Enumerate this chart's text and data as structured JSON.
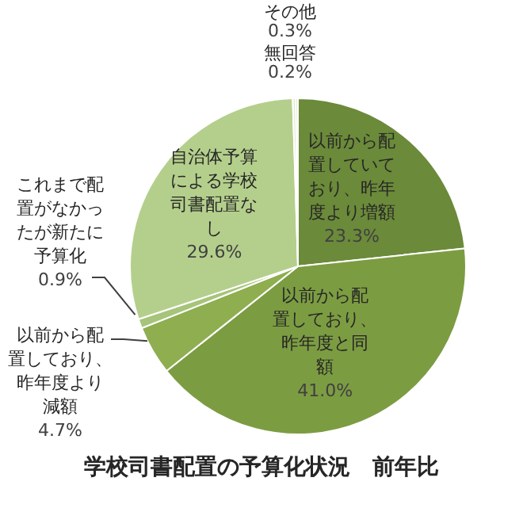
{
  "chart_data": {
    "type": "pie",
    "title": "学校司書配置の予算化状況　前年比",
    "categories": [
      "以前から配置していており、昨年度より増額",
      "以前から配置しており、昨年度と同額",
      "以前から配置しており、昨年度より減額",
      "これまで配置がなかったが新たに予算化",
      "自治体予算による学校司書配置なし",
      "その他",
      "無回答"
    ],
    "values": [
      23.3,
      41.0,
      4.7,
      0.9,
      29.6,
      0.3,
      0.2
    ],
    "colors": [
      "#6b8a3a",
      "#7c9c42",
      "#8eae50",
      "#a6c47a",
      "#b4cf8c",
      "#e2ecd4",
      "#cfe0b8"
    ],
    "value_labels": [
      "23.3%",
      "41.0%",
      "4.7%",
      "0.9%",
      "29.6%",
      "0.3%",
      "0.2%"
    ]
  }
}
